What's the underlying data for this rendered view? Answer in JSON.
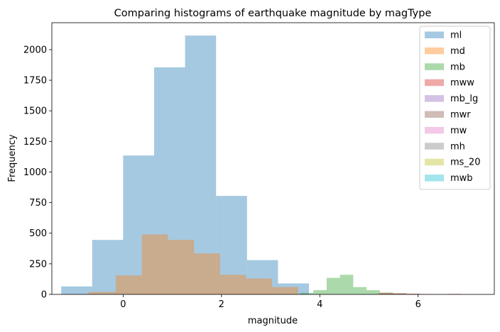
{
  "chart_data": {
    "type": "histogram",
    "title": "Comparing histograms of earthquake magnitude by magType",
    "xlabel": "magnitude",
    "ylabel": "Frequency",
    "xlim": [
      -1.45,
      7.55
    ],
    "ylim": [
      0,
      2220
    ],
    "xticks": [
      0,
      2,
      4,
      6
    ],
    "yticks": [
      0,
      250,
      500,
      750,
      1000,
      1250,
      1500,
      1750,
      2000
    ],
    "legend_position": "top-right",
    "alpha": 0.4,
    "series": [
      {
        "name": "ml",
        "color": "#1f77b4",
        "edges": [
          -1.26,
          -0.63,
          0.0,
          0.63,
          1.26,
          1.89,
          2.52,
          3.15,
          3.78
        ],
        "counts": [
          65,
          445,
          1135,
          1855,
          2115,
          805,
          280,
          90
        ]
      },
      {
        "name": "md",
        "color": "#ff7f0e",
        "edges": [
          -0.7,
          -0.15,
          0.38,
          0.91,
          1.44,
          1.97,
          2.5,
          3.03,
          3.56
        ],
        "counts": [
          20,
          155,
          490,
          445,
          335,
          160,
          130,
          60
        ]
      },
      {
        "name": "mb",
        "color": "#2ca02c",
        "edges": [
          3.6,
          3.87,
          4.14,
          4.41,
          4.68,
          4.95,
          5.22,
          5.49,
          5.76,
          6.03,
          6.3
        ],
        "counts": [
          12,
          35,
          135,
          160,
          60,
          35,
          15,
          8,
          4,
          2
        ]
      },
      {
        "name": "mww",
        "color": "#d62728",
        "edges": [
          5.2,
          5.48,
          5.76,
          6.04,
          6.32,
          6.6,
          6.88
        ],
        "counts": [
          12,
          10,
          6,
          3,
          2,
          4
        ]
      },
      {
        "name": "mb_lg",
        "color": "#9467bd",
        "edges": [],
        "counts": []
      },
      {
        "name": "mwr",
        "color": "#8c564b",
        "edges": [],
        "counts": []
      },
      {
        "name": "mw",
        "color": "#e377c2",
        "edges": [],
        "counts": []
      },
      {
        "name": "mh",
        "color": "#7f7f7f",
        "edges": [],
        "counts": []
      },
      {
        "name": "ms_20",
        "color": "#bcbd22",
        "edges": [],
        "counts": []
      },
      {
        "name": "mwb",
        "color": "#17becf",
        "edges": [],
        "counts": []
      }
    ]
  }
}
